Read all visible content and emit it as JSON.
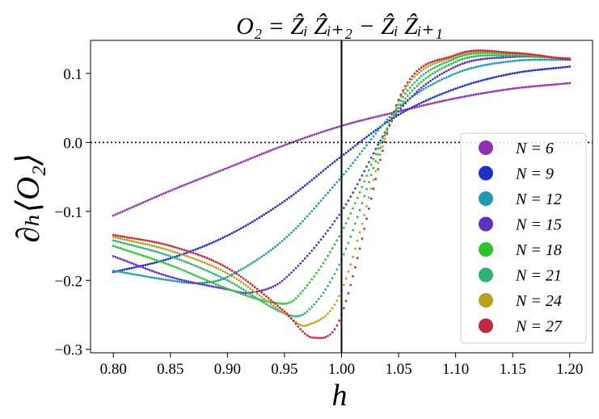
{
  "chart_data": {
    "type": "scatter",
    "title": "O₂ = Ẑᵢ Ẑᵢ₊₂ − Ẑᵢ Ẑᵢ₊₁",
    "xlabel": "h",
    "ylabel": "∂ₕ⟨O₂⟩",
    "xlim": [
      0.78,
      1.22
    ],
    "ylim": [
      -0.305,
      0.148
    ],
    "xticks": [
      0.8,
      0.85,
      0.9,
      0.95,
      1.0,
      1.05,
      1.1,
      1.15,
      1.2
    ],
    "xtick_labels": [
      "0.80",
      "0.85",
      "0.90",
      "0.95",
      "1.00",
      "1.05",
      "1.10",
      "1.15",
      "1.20"
    ],
    "yticks": [
      0.1,
      0.0,
      -0.1,
      -0.2,
      -0.3
    ],
    "ytick_labels": [
      "0.1",
      "0.0",
      "−0.1",
      "−0.2",
      "−0.3"
    ],
    "vline_x": 1.0,
    "hline_y": 0.0,
    "legend_position": "center-right",
    "series": [
      {
        "name": "N = 6",
        "color": "#9030B0",
        "points": [
          [
            0.8,
            -0.106
          ],
          [
            0.85,
            -0.07
          ],
          [
            0.9,
            -0.037
          ],
          [
            0.95,
            -0.004
          ],
          [
            1.0,
            0.024
          ],
          [
            1.05,
            0.045
          ],
          [
            1.1,
            0.064
          ],
          [
            1.15,
            0.078
          ],
          [
            1.2,
            0.086
          ]
        ]
      },
      {
        "name": "N = 9",
        "color": "#2030C0",
        "points": [
          [
            0.8,
            -0.188
          ],
          [
            0.85,
            -0.168
          ],
          [
            0.9,
            -0.135
          ],
          [
            0.95,
            -0.085
          ],
          [
            1.0,
            -0.02
          ],
          [
            1.05,
            0.04
          ],
          [
            1.1,
            0.078
          ],
          [
            1.15,
            0.1
          ],
          [
            1.2,
            0.11
          ]
        ]
      },
      {
        "name": "N = 12",
        "color": "#2098B0",
        "points": [
          [
            0.8,
            -0.186
          ],
          [
            0.85,
            -0.2
          ],
          [
            0.875,
            -0.204
          ],
          [
            0.9,
            -0.195
          ],
          [
            0.95,
            -0.14
          ],
          [
            1.0,
            -0.05
          ],
          [
            1.05,
            0.05
          ],
          [
            1.1,
            0.1
          ],
          [
            1.15,
            0.118
          ],
          [
            1.2,
            0.12
          ]
        ]
      },
      {
        "name": "N = 15",
        "color": "#6030C0",
        "points": [
          [
            0.8,
            -0.165
          ],
          [
            0.85,
            -0.195
          ],
          [
            0.9,
            -0.213
          ],
          [
            0.92,
            -0.218
          ],
          [
            0.95,
            -0.198
          ],
          [
            1.0,
            -0.1
          ],
          [
            1.05,
            0.045
          ],
          [
            1.1,
            0.11
          ],
          [
            1.15,
            0.124
          ],
          [
            1.2,
            0.122
          ]
        ]
      },
      {
        "name": "N = 18",
        "color": "#30C030",
        "points": [
          [
            0.8,
            -0.15
          ],
          [
            0.85,
            -0.178
          ],
          [
            0.9,
            -0.212
          ],
          [
            0.94,
            -0.232
          ],
          [
            0.96,
            -0.226
          ],
          [
            1.0,
            -0.13
          ],
          [
            1.05,
            0.05
          ],
          [
            1.1,
            0.117
          ],
          [
            1.15,
            0.126
          ],
          [
            1.2,
            0.121
          ]
        ]
      },
      {
        "name": "N = 21",
        "color": "#30B078",
        "points": [
          [
            0.8,
            -0.142
          ],
          [
            0.85,
            -0.165
          ],
          [
            0.9,
            -0.2
          ],
          [
            0.95,
            -0.248
          ],
          [
            0.97,
            -0.245
          ],
          [
            1.0,
            -0.17
          ],
          [
            1.05,
            0.055
          ],
          [
            1.1,
            0.122
          ],
          [
            1.15,
            0.128
          ],
          [
            1.2,
            0.12
          ]
        ]
      },
      {
        "name": "N = 24",
        "color": "#B8A020",
        "points": [
          [
            0.8,
            -0.137
          ],
          [
            0.85,
            -0.157
          ],
          [
            0.9,
            -0.19
          ],
          [
            0.95,
            -0.248
          ],
          [
            0.97,
            -0.265
          ],
          [
            1.0,
            -0.215
          ],
          [
            1.05,
            0.06
          ],
          [
            1.1,
            0.125
          ],
          [
            1.15,
            0.129
          ],
          [
            1.2,
            0.12
          ]
        ]
      },
      {
        "name": "N = 27",
        "color": "#C02840",
        "points": [
          [
            0.8,
            -0.134
          ],
          [
            0.85,
            -0.15
          ],
          [
            0.9,
            -0.182
          ],
          [
            0.95,
            -0.245
          ],
          [
            0.975,
            -0.283
          ],
          [
            1.0,
            -0.25
          ],
          [
            1.05,
            0.062
          ],
          [
            1.1,
            0.127
          ],
          [
            1.15,
            0.13
          ],
          [
            1.2,
            0.12
          ]
        ]
      }
    ]
  }
}
